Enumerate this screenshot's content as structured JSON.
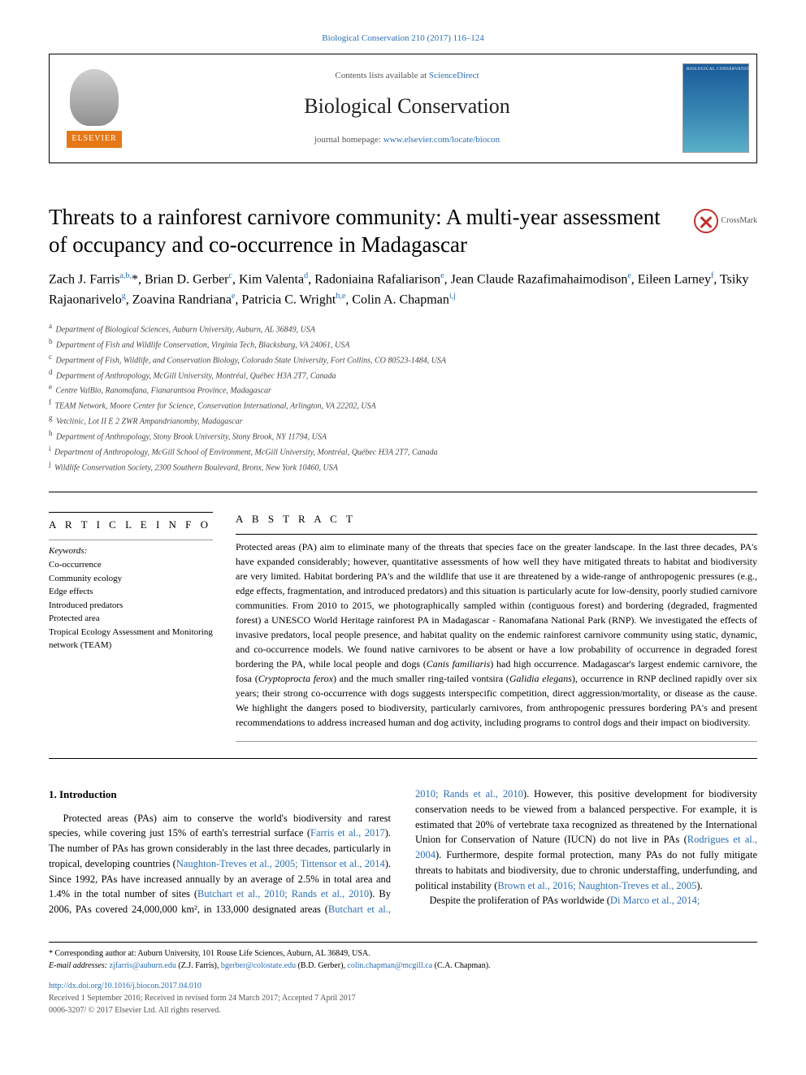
{
  "top_citation": "Biological Conservation 210 (2017) 116–124",
  "contents_text": "Contents lists available at ",
  "contents_link": "ScienceDirect",
  "journal_name": "Biological Conservation",
  "homepage_text": "journal homepage: ",
  "homepage_link": "www.elsevier.com/locate/biocon",
  "elsevier_label": "ELSEVIER",
  "crossmark_label": "CrossMark",
  "article_title": "Threats to a rainforest carnivore community: A multi-year assessment of occupancy and co-occurrence in Madagascar",
  "authors_html": "Zach J. Farris<sup>a,b,</sup>*<sup></sup>, Brian D. Gerber<sup>c</sup>, Kim Valenta<sup>d</sup>, Radoniaina Rafaliarison<sup>e</sup>, Jean Claude Razafimahaimodison<sup>e</sup>, Eileen Larney<sup>f</sup>, Tsiky Rajaonarivelo<sup>g</sup>, Zoavina Randriana<sup>e</sup>, Patricia C. Wright<sup>h,e</sup>, Colin A. Chapman<sup>i,j</sup>",
  "affiliations": [
    "a|Department of Biological Sciences, Auburn University, Auburn, AL 36849, USA",
    "b|Department of Fish and Wildlife Conservation, Virginia Tech, Blacksburg, VA 24061, USA",
    "c|Department of Fish, Wildlife, and Conservation Biology, Colorado State University, Fort Collins, CO 80523-1484, USA",
    "d|Department of Anthropology, McGill University, Montréal, Québec H3A 2T7, Canada",
    "e|Centre ValBio, Ranomafana, Fianarantsoa Province, Madagascar",
    "f|TEAM Network, Moore Center for Science, Conservation International, Arlington, VA 22202, USA",
    "g|Vetclinic, Lot II E 2 ZWR Ampandrianomby, Madagascar",
    "h|Department of Anthropology, Stony Brook University, Stony Brook, NY 11794, USA",
    "i|Department of Anthropology, McGill School of Environment, McGill University, Montréal, Québec H3A 2T7, Canada",
    "j|Wildlife Conservation Society, 2300 Southern Boulevard, Bronx, New York 10460, USA"
  ],
  "article_info_head": "A R T I C L E  I N F O",
  "abstract_head": "A B S T R A C T",
  "keywords_label": "Keywords:",
  "keywords": [
    "Co-occurrence",
    "Community ecology",
    "Edge effects",
    "Introduced predators",
    "Protected area",
    "Tropical Ecology Assessment and Monitoring network (TEAM)"
  ],
  "abstract_text": "Protected areas (PA) aim to eliminate many of the threats that species face on the greater landscape. In the last three decades, PA's have expanded considerably; however, quantitative assessments of how well they have mitigated threats to habitat and biodiversity are very limited. Habitat bordering PA's and the wildlife that use it are threatened by a wide-range of anthropogenic pressures (e.g., edge effects, fragmentation, and introduced predators) and this situation is particularly acute for low-density, poorly studied carnivore communities. From 2010 to 2015, we photographically sampled within (contiguous forest) and bordering (degraded, fragmented forest) a UNESCO World Heritage rainforest PA in Madagascar - Ranomafana National Park (RNP). We investigated the effects of invasive predators, local people presence, and habitat quality on the endemic rainforest carnivore community using static, dynamic, and co-occurrence models. We found native carnivores to be absent or have a low probability of occurrence in degraded forest bordering the PA, while local people and dogs (Canis familiaris) had high occurrence. Madagascar's largest endemic carnivore, the fosa (Cryptoprocta ferox) and the much smaller ring-tailed vontsira (Galidia elegans), occurrence in RNP declined rapidly over six years; their strong co-occurrence with dogs suggests interspecific competition, direct aggression/mortality, or disease as the cause. We highlight the dangers posed to biodiversity, particularly carnivores, from anthropogenic pressures bordering PA's and present recommendations to address increased human and dog activity, including programs to control dogs and their impact on biodiversity.",
  "intro_head": "1. Introduction",
  "intro_p1_a": "Protected areas (PAs) aim to conserve the world's biodiversity and rarest species, while covering just 15% of earth's terrestrial surface (",
  "intro_p1_link1": "Farris et al., 2017",
  "intro_p1_b": "). The number of PAs has grown considerably in the last three decades, particularly in tropical, developing countries (",
  "intro_p1_link2": "Naughton-Treves et al., 2005; Tittensor et al., 2014",
  "intro_p1_c": "). Since 1992, PAs have increased annually by an average of 2.5% in total area and 1.4% in the total number of sites (",
  "intro_p1_link3": "Butchart et al., 2010; Rands et al., 2010",
  "intro_p1_d": "). By 2006, PAs covered 24,000,000 km², in 133,000 designated ",
  "intro_p2_a": "areas (",
  "intro_p2_link1": "Butchart et al., 2010; Rands et al., 2010",
  "intro_p2_b": "). However, this positive development for biodiversity conservation needs to be viewed from a balanced perspective. For example, it is estimated that 20% of vertebrate taxa recognized as threatened by the International Union for Conservation of Nature (IUCN) do not live in PAs (",
  "intro_p2_link2": "Rodrigues et al., 2004",
  "intro_p2_c": "). Furthermore, despite formal protection, many PAs do not fully mitigate threats to habitats and biodiversity, due to chronic understaffing, underfunding, and political instability (",
  "intro_p2_link3": "Brown et al., 2016; Naughton-Treves et al., 2005",
  "intro_p2_d": ").",
  "intro_p3_a": "Despite the proliferation of PAs worldwide (",
  "intro_p3_link1": "Di Marco et al., 2014;",
  "corr_author": "* Corresponding author at: Auburn University, 101 Rouse Life Sciences, Auburn, AL 36849, USA.",
  "email_label": "E-mail addresses: ",
  "email1": "zjfarris@auburn.edu",
  "email1_who": " (Z.J. Farris), ",
  "email2": "bgerber@colostate.edu",
  "email2_who": " (B.D. Gerber), ",
  "email3": "colin.chapman@mcgill.ca",
  "email3_who": " (C.A. Chapman).",
  "doi": "http://dx.doi.org/10.1016/j.biocon.2017.04.010",
  "history": "Received 1 September 2016; Received in revised form 24 March 2017; Accepted 7 April 2017",
  "copyright": "0006-3207/ © 2017 Elsevier Ltd. All rights reserved."
}
